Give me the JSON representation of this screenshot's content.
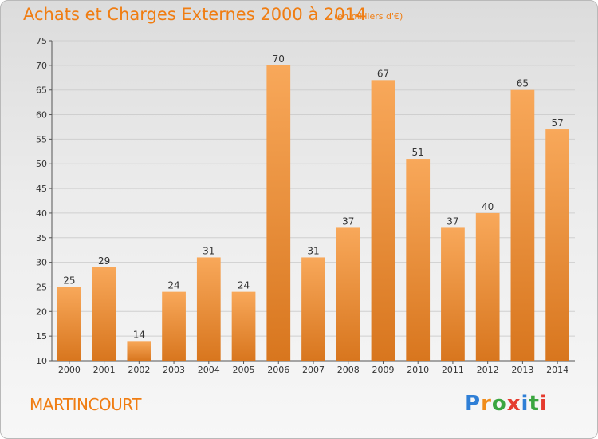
{
  "title": "Achats et Charges Externes 2000 à 2014",
  "subtitle": "(en milliers d'€)",
  "commune": "MARTINCOURT",
  "logo": {
    "text": "Proxiti",
    "letter_colors": [
      "#2f7fd6",
      "#f08c1a",
      "#3aa640",
      "#e53b2e",
      "#2f7fd6",
      "#3aa640",
      "#e53b2e"
    ]
  },
  "colors": {
    "title": "#f07d12",
    "bar_top": "#f8a85a",
    "bar_bottom": "#d8761e",
    "grid": "#cfcfcf"
  },
  "chart_data": {
    "type": "bar",
    "categories": [
      "2000",
      "2001",
      "2002",
      "2003",
      "2004",
      "2005",
      "2006",
      "2007",
      "2008",
      "2009",
      "2010",
      "2011",
      "2012",
      "2013",
      "2014"
    ],
    "values": [
      25,
      29,
      14,
      24,
      31,
      24,
      70,
      31,
      37,
      67,
      51,
      37,
      40,
      65,
      57
    ],
    "ylim": [
      10,
      75
    ],
    "yticks": [
      10,
      15,
      20,
      25,
      30,
      35,
      40,
      45,
      50,
      55,
      60,
      65,
      70,
      75
    ],
    "grid": true,
    "data_labels": true
  }
}
